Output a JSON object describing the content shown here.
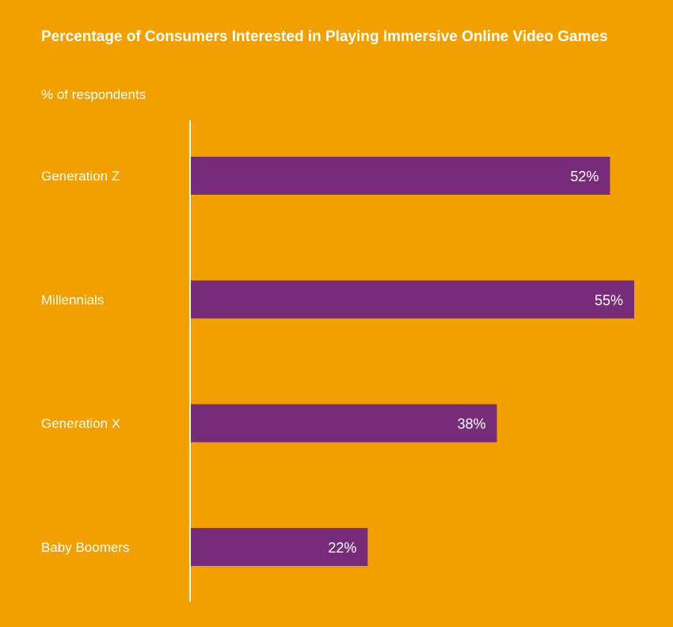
{
  "colors": {
    "background": "#F2A000",
    "bar": "#772C79",
    "text": "#FFFFFF",
    "axis": "#FFFFFF"
  },
  "chart_data": {
    "type": "bar",
    "orientation": "horizontal",
    "title": "Percentage of Consumers Interested in Playing Immersive Online Video Games",
    "subtitle": "% of respondents",
    "xlabel": "",
    "ylabel": "",
    "categories": [
      "Generation Z",
      "Millennials",
      "Generation X",
      "Baby Boomers"
    ],
    "values": [
      52,
      55,
      38,
      22
    ],
    "value_labels": [
      "52%",
      "55%",
      "38%",
      "22%"
    ],
    "xlim": [
      0,
      55
    ],
    "grid": false,
    "legend": "none"
  }
}
